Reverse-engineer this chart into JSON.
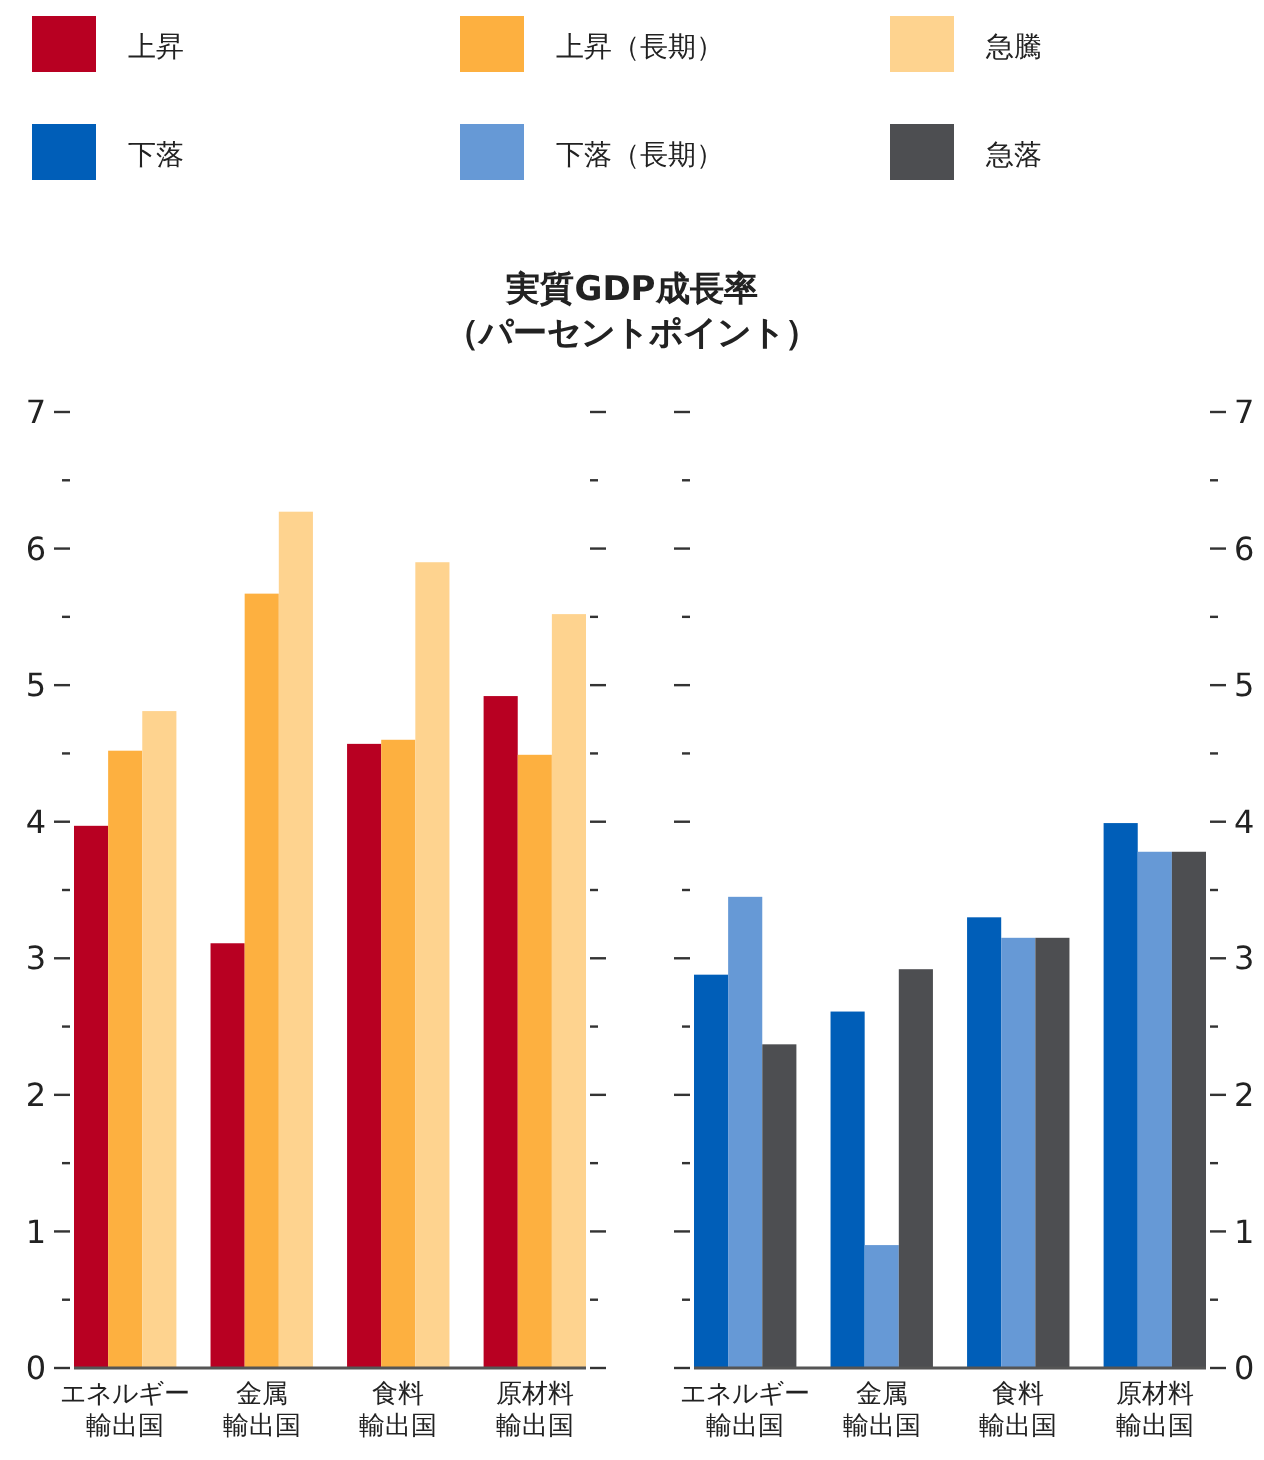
{
  "chart_data": [
    {
      "type": "bar",
      "title": "実質GDP成長率（パーセントポイント）",
      "categories": [
        "エネルギー輸出国",
        "金属輸出国",
        "食料輸出国",
        "原材料輸出国"
      ],
      "series": [
        {
          "name": "上昇",
          "color": "#b80022",
          "values": [
            3.97,
            3.11,
            4.57,
            4.92
          ]
        },
        {
          "name": "上昇（長期）",
          "color": "#fdb040",
          "values": [
            4.52,
            5.67,
            4.6,
            4.49
          ]
        },
        {
          "name": "急騰",
          "color": "#fed38f",
          "values": [
            4.81,
            6.27,
            5.9,
            5.52
          ]
        }
      ],
      "ylim": [
        0,
        7
      ],
      "yticks": [
        0,
        {
          "value": 0.5,
          "label": null
        },
        1,
        {
          "value": 1.5,
          "label": null
        },
        2,
        {
          "value": 2.5,
          "label": null
        },
        3,
        {
          "value": 3.5,
          "label": null
        },
        4,
        {
          "value": 4.5,
          "label": null
        },
        5,
        {
          "value": 5.5,
          "label": null
        },
        6,
        {
          "value": 6.5,
          "label": null
        },
        7
      ],
      "legend": "top",
      "grid": false
    },
    {
      "type": "bar",
      "categories": [
        "エネルギー輸出国",
        "金属輸出国",
        "食料輸出国",
        "原材料輸出国"
      ],
      "series": [
        {
          "name": "下落",
          "color": "#005eb8",
          "values": [
            2.88,
            2.61,
            3.3,
            3.99
          ],
          "axis": "y2"
        },
        {
          "name": "下落（長期）",
          "color": "#6699d6",
          "values": [
            3.45,
            0.9,
            3.15,
            3.78
          ],
          "axis": "y2"
        },
        {
          "name": "急落",
          "color": "#4d4e51",
          "values": [
            2.37,
            2.92,
            3.15,
            3.78
          ],
          "axis": "y2"
        }
      ],
      "y2lim": [
        0,
        7
      ],
      "y2ticks": [
        0,
        {
          "value": 0.5,
          "label": null
        },
        1,
        {
          "value": 1.5,
          "label": null
        },
        2,
        {
          "value": 2.5,
          "label": null
        },
        3,
        {
          "value": 3.5,
          "label": null
        },
        4,
        {
          "value": 4.5,
          "label": null
        },
        5,
        {
          "value": 5.5,
          "label": null
        },
        6,
        {
          "value": 6.5,
          "label": null
        },
        7
      ],
      "legend": "top",
      "grid": false
    }
  ]
}
